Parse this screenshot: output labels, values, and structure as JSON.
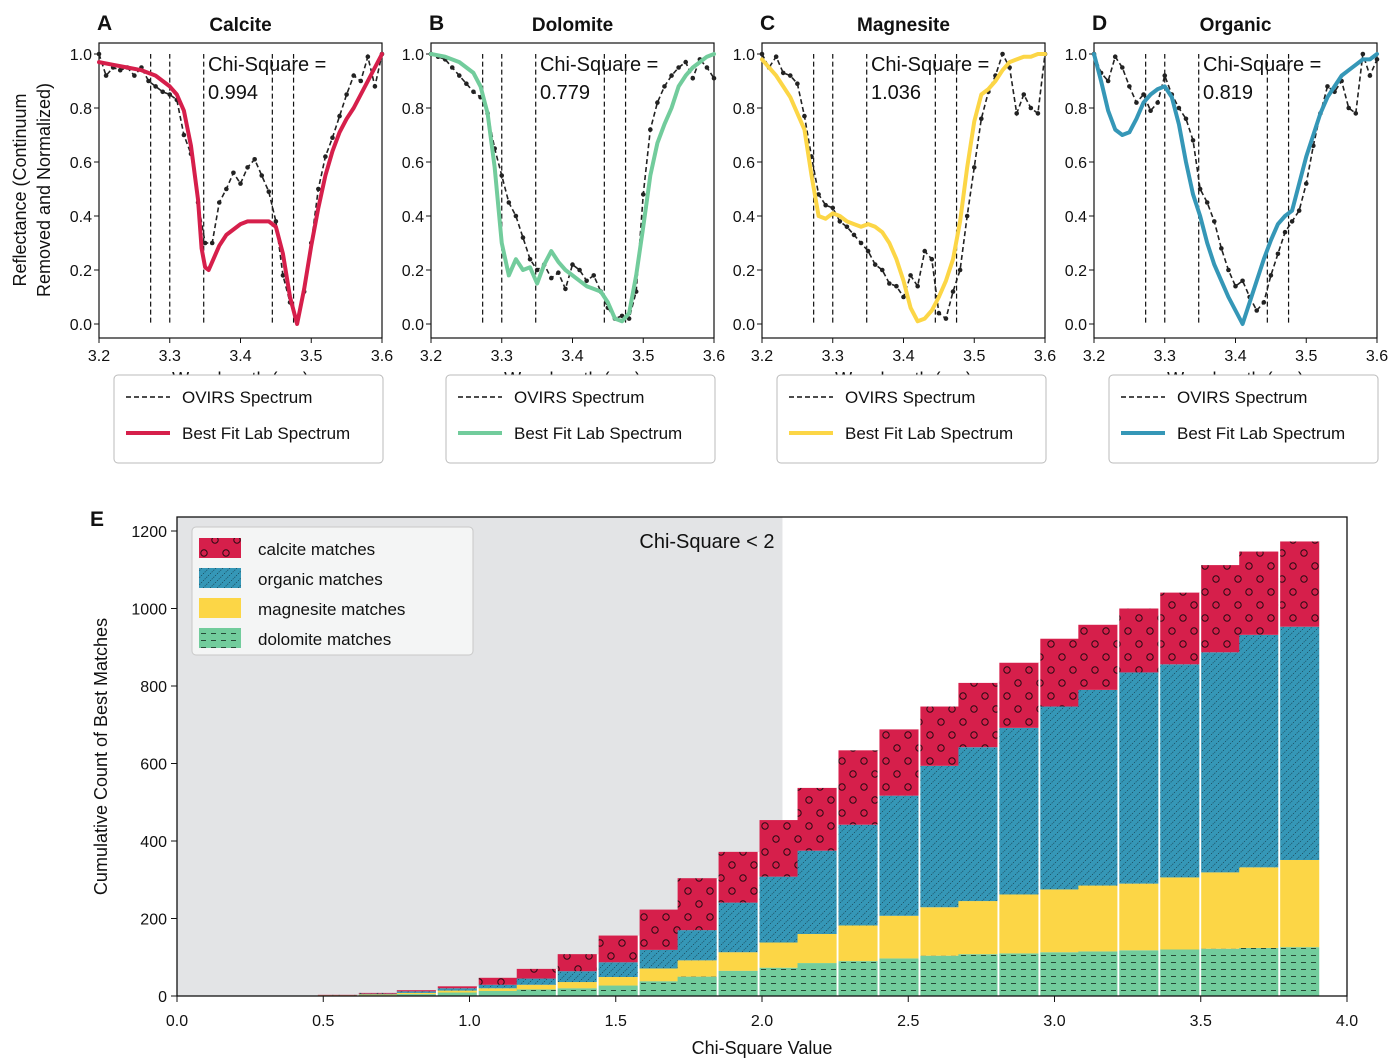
{
  "figure": {
    "top_ylabel": [
      "Reflectance (Continuum",
      "Removed and Normalized)"
    ]
  },
  "chart_data": [
    {
      "type": "line",
      "letter": "A",
      "title": "Calcite",
      "xlabel": "Wavelength (µm)",
      "xlim": [
        3.2,
        3.6
      ],
      "ylim": [
        0.0,
        1.0
      ],
      "xticks": [
        "3.2",
        "3.3",
        "3.4",
        "3.5",
        "3.6"
      ],
      "yticks": [
        "0.0",
        "0.2",
        "0.4",
        "0.6",
        "0.8",
        "1.0"
      ],
      "annotation": [
        "Chi-Square =",
        "0.994"
      ],
      "vlines": [
        3.273,
        3.3,
        3.348,
        3.445,
        3.475
      ],
      "fit_color": "#d61f4b",
      "legend": [
        "OVIRS Spectrum",
        "Best Fit Lab Spectrum"
      ],
      "series": [
        {
          "name": "OVIRS Spectrum",
          "style": "dashed-markers",
          "x": [
            3.2,
            3.21,
            3.22,
            3.23,
            3.24,
            3.25,
            3.26,
            3.27,
            3.28,
            3.29,
            3.3,
            3.31,
            3.32,
            3.33,
            3.34,
            3.35,
            3.36,
            3.37,
            3.38,
            3.39,
            3.4,
            3.41,
            3.42,
            3.43,
            3.44,
            3.45,
            3.46,
            3.47,
            3.48,
            3.49,
            3.5,
            3.51,
            3.52,
            3.53,
            3.54,
            3.55,
            3.56,
            3.57,
            3.58,
            3.59,
            3.6
          ],
          "y": [
            1.0,
            0.92,
            0.95,
            0.94,
            0.95,
            0.92,
            0.95,
            0.9,
            0.88,
            0.86,
            0.85,
            0.83,
            0.7,
            0.63,
            0.45,
            0.3,
            0.3,
            0.45,
            0.5,
            0.56,
            0.52,
            0.58,
            0.61,
            0.55,
            0.49,
            0.38,
            0.18,
            0.08,
            0.01,
            0.12,
            0.3,
            0.5,
            0.62,
            0.69,
            0.77,
            0.85,
            0.92,
            0.9,
            0.99,
            0.88,
            1.0
          ]
        },
        {
          "name": "Best Fit Lab Spectrum",
          "style": "solid",
          "x": [
            3.2,
            3.22,
            3.24,
            3.26,
            3.28,
            3.3,
            3.31,
            3.32,
            3.33,
            3.34,
            3.345,
            3.35,
            3.355,
            3.36,
            3.37,
            3.38,
            3.39,
            3.4,
            3.41,
            3.42,
            3.43,
            3.44,
            3.45,
            3.46,
            3.47,
            3.48,
            3.49,
            3.5,
            3.51,
            3.52,
            3.53,
            3.54,
            3.55,
            3.56,
            3.57,
            3.58,
            3.59,
            3.6
          ],
          "y": [
            0.97,
            0.96,
            0.95,
            0.94,
            0.92,
            0.88,
            0.85,
            0.79,
            0.66,
            0.46,
            0.28,
            0.21,
            0.2,
            0.23,
            0.29,
            0.33,
            0.35,
            0.37,
            0.38,
            0.38,
            0.38,
            0.38,
            0.36,
            0.26,
            0.1,
            0.0,
            0.13,
            0.29,
            0.43,
            0.55,
            0.64,
            0.71,
            0.76,
            0.8,
            0.85,
            0.9,
            0.95,
            1.0
          ]
        }
      ]
    },
    {
      "type": "line",
      "letter": "B",
      "title": "Dolomite",
      "xlabel": "Wavelength (µm)",
      "xlim": [
        3.2,
        3.6
      ],
      "ylim": [
        0.0,
        1.0
      ],
      "xticks": [
        "3.2",
        "3.3",
        "3.4",
        "3.5",
        "3.6"
      ],
      "yticks": [
        "0.0",
        "0.2",
        "0.4",
        "0.6",
        "0.8",
        "1.0"
      ],
      "annotation": [
        "Chi-Square =",
        "0.779"
      ],
      "vlines": [
        3.273,
        3.3,
        3.348,
        3.445,
        3.475
      ],
      "fit_color": "#72cc9c",
      "legend": [
        "OVIRS Spectrum",
        "Best Fit Lab Spectrum"
      ],
      "series": [
        {
          "name": "OVIRS Spectrum",
          "style": "dashed-markers",
          "x": [
            3.2,
            3.21,
            3.22,
            3.23,
            3.24,
            3.25,
            3.26,
            3.27,
            3.28,
            3.29,
            3.3,
            3.31,
            3.32,
            3.33,
            3.34,
            3.35,
            3.36,
            3.37,
            3.38,
            3.39,
            3.4,
            3.41,
            3.42,
            3.43,
            3.44,
            3.45,
            3.46,
            3.47,
            3.48,
            3.49,
            3.5,
            3.51,
            3.52,
            3.53,
            3.54,
            3.55,
            3.56,
            3.57,
            3.58,
            3.59,
            3.6
          ],
          "y": [
            1.0,
            0.99,
            0.98,
            0.95,
            0.92,
            0.89,
            0.86,
            0.84,
            0.78,
            0.65,
            0.55,
            0.45,
            0.4,
            0.32,
            0.24,
            0.2,
            0.22,
            0.17,
            0.19,
            0.13,
            0.22,
            0.2,
            0.16,
            0.18,
            0.12,
            0.06,
            0.02,
            0.03,
            0.02,
            0.12,
            0.48,
            0.72,
            0.82,
            0.88,
            0.92,
            0.95,
            0.97,
            0.91,
            0.98,
            0.95,
            0.91
          ]
        },
        {
          "name": "Best Fit Lab Spectrum",
          "style": "solid",
          "x": [
            3.2,
            3.22,
            3.24,
            3.26,
            3.27,
            3.28,
            3.29,
            3.3,
            3.31,
            3.32,
            3.33,
            3.34,
            3.35,
            3.36,
            3.37,
            3.38,
            3.39,
            3.4,
            3.41,
            3.42,
            3.43,
            3.44,
            3.45,
            3.46,
            3.47,
            3.48,
            3.49,
            3.5,
            3.51,
            3.52,
            3.53,
            3.54,
            3.55,
            3.56,
            3.57,
            3.58,
            3.59,
            3.6
          ],
          "y": [
            1.0,
            0.99,
            0.97,
            0.93,
            0.88,
            0.78,
            0.58,
            0.3,
            0.18,
            0.24,
            0.2,
            0.21,
            0.15,
            0.22,
            0.27,
            0.23,
            0.2,
            0.18,
            0.16,
            0.14,
            0.13,
            0.12,
            0.08,
            0.02,
            0.01,
            0.04,
            0.18,
            0.36,
            0.55,
            0.67,
            0.74,
            0.8,
            0.88,
            0.92,
            0.95,
            0.97,
            0.99,
            1.0
          ]
        }
      ]
    },
    {
      "type": "line",
      "letter": "C",
      "title": "Magnesite",
      "xlabel": "Wavelength (µm)",
      "xlim": [
        3.2,
        3.6
      ],
      "ylim": [
        0.0,
        1.0
      ],
      "xticks": [
        "3.2",
        "3.3",
        "3.4",
        "3.5",
        "3.6"
      ],
      "yticks": [
        "0.0",
        "0.2",
        "0.4",
        "0.6",
        "0.8",
        "1.0"
      ],
      "annotation": [
        "Chi-Square =",
        "1.036"
      ],
      "vlines": [
        3.273,
        3.3,
        3.348,
        3.445,
        3.475
      ],
      "fit_color": "#fcd646",
      "legend": [
        "OVIRS Spectrum",
        "Best Fit Lab Spectrum"
      ],
      "series": [
        {
          "name": "OVIRS Spectrum",
          "style": "dashed-markers",
          "x": [
            3.2,
            3.21,
            3.22,
            3.23,
            3.24,
            3.25,
            3.26,
            3.27,
            3.28,
            3.29,
            3.3,
            3.31,
            3.32,
            3.33,
            3.34,
            3.35,
            3.36,
            3.37,
            3.38,
            3.39,
            3.4,
            3.41,
            3.42,
            3.43,
            3.44,
            3.45,
            3.46,
            3.47,
            3.48,
            3.49,
            3.5,
            3.51,
            3.52,
            3.53,
            3.54,
            3.55,
            3.56,
            3.57,
            3.58,
            3.59,
            3.6
          ],
          "y": [
            1.0,
            0.95,
            0.99,
            0.93,
            0.92,
            0.89,
            0.77,
            0.62,
            0.48,
            0.44,
            0.43,
            0.38,
            0.36,
            0.33,
            0.3,
            0.27,
            0.22,
            0.2,
            0.15,
            0.14,
            0.1,
            0.18,
            0.14,
            0.27,
            0.24,
            0.04,
            0.02,
            0.12,
            0.2,
            0.4,
            0.58,
            0.76,
            0.86,
            0.92,
            1.0,
            0.95,
            0.78,
            0.85,
            0.8,
            0.78,
            1.0
          ]
        },
        {
          "name": "Best Fit Lab Spectrum",
          "style": "solid",
          "x": [
            3.2,
            3.22,
            3.24,
            3.26,
            3.27,
            3.28,
            3.29,
            3.3,
            3.31,
            3.32,
            3.33,
            3.34,
            3.35,
            3.36,
            3.37,
            3.38,
            3.39,
            3.4,
            3.41,
            3.42,
            3.43,
            3.44,
            3.45,
            3.46,
            3.47,
            3.48,
            3.49,
            3.5,
            3.51,
            3.52,
            3.53,
            3.54,
            3.55,
            3.56,
            3.57,
            3.58,
            3.59,
            3.6
          ],
          "y": [
            0.98,
            0.92,
            0.84,
            0.72,
            0.55,
            0.4,
            0.39,
            0.41,
            0.4,
            0.38,
            0.37,
            0.36,
            0.37,
            0.36,
            0.34,
            0.3,
            0.24,
            0.16,
            0.06,
            0.01,
            0.02,
            0.05,
            0.1,
            0.16,
            0.24,
            0.38,
            0.58,
            0.75,
            0.85,
            0.87,
            0.9,
            0.94,
            0.97,
            0.98,
            0.99,
            0.99,
            1.0,
            1.0
          ]
        }
      ]
    },
    {
      "type": "line",
      "letter": "D",
      "title": "Organic",
      "xlabel": "Wavelength (µm)",
      "xlim": [
        3.2,
        3.6
      ],
      "ylim": [
        0.0,
        1.0
      ],
      "xticks": [
        "3.2",
        "3.3",
        "3.4",
        "3.5",
        "3.6"
      ],
      "yticks": [
        "0.0",
        "0.2",
        "0.4",
        "0.6",
        "0.8",
        "1.0"
      ],
      "annotation": [
        "Chi-Square =",
        "0.819"
      ],
      "vlines": [
        3.273,
        3.3,
        3.348,
        3.445,
        3.475
      ],
      "fit_color": "#3597b7",
      "legend": [
        "OVIRS Spectrum",
        "Best Fit Lab Spectrum"
      ],
      "series": [
        {
          "name": "OVIRS Spectrum",
          "style": "dashed-markers",
          "x": [
            3.2,
            3.21,
            3.22,
            3.23,
            3.24,
            3.25,
            3.26,
            3.27,
            3.28,
            3.29,
            3.3,
            3.31,
            3.32,
            3.33,
            3.34,
            3.35,
            3.36,
            3.37,
            3.38,
            3.39,
            3.4,
            3.41,
            3.42,
            3.43,
            3.44,
            3.45,
            3.46,
            3.47,
            3.48,
            3.49,
            3.5,
            3.51,
            3.52,
            3.53,
            3.54,
            3.55,
            3.56,
            3.57,
            3.58,
            3.59,
            3.6
          ],
          "y": [
            1.0,
            0.93,
            0.9,
            0.99,
            0.95,
            0.88,
            0.82,
            0.85,
            0.79,
            0.82,
            0.92,
            0.85,
            0.8,
            0.76,
            0.68,
            0.5,
            0.45,
            0.38,
            0.28,
            0.2,
            0.14,
            0.16,
            0.1,
            0.05,
            0.08,
            0.18,
            0.26,
            0.34,
            0.38,
            0.42,
            0.52,
            0.66,
            0.78,
            0.88,
            0.86,
            0.9,
            0.8,
            0.78,
            1.0,
            0.92,
            0.98
          ]
        },
        {
          "name": "Best Fit Lab Spectrum",
          "style": "solid",
          "x": [
            3.2,
            3.21,
            3.22,
            3.23,
            3.24,
            3.25,
            3.26,
            3.27,
            3.28,
            3.29,
            3.3,
            3.31,
            3.32,
            3.33,
            3.34,
            3.35,
            3.36,
            3.37,
            3.38,
            3.39,
            3.4,
            3.41,
            3.42,
            3.43,
            3.44,
            3.45,
            3.46,
            3.47,
            3.48,
            3.49,
            3.5,
            3.51,
            3.52,
            3.53,
            3.54,
            3.55,
            3.56,
            3.57,
            3.58,
            3.59,
            3.6
          ],
          "y": [
            1.0,
            0.9,
            0.79,
            0.72,
            0.7,
            0.71,
            0.76,
            0.82,
            0.85,
            0.87,
            0.88,
            0.84,
            0.74,
            0.6,
            0.48,
            0.4,
            0.3,
            0.22,
            0.16,
            0.1,
            0.05,
            0.0,
            0.08,
            0.16,
            0.24,
            0.31,
            0.37,
            0.4,
            0.42,
            0.52,
            0.62,
            0.7,
            0.78,
            0.84,
            0.88,
            0.92,
            0.94,
            0.96,
            0.98,
            0.98,
            1.0
          ]
        }
      ]
    },
    {
      "type": "bar",
      "stacked": true,
      "letter": "E",
      "xlabel": "Chi-Square Value",
      "ylabel": "Cumulative Count of Best Matches",
      "xlim": [
        0.0,
        4.0
      ],
      "ylim": [
        0,
        1200
      ],
      "xticks": [
        "0.0",
        "0.5",
        "1.0",
        "1.5",
        "2.0",
        "2.5",
        "3.0",
        "3.5",
        "4.0"
      ],
      "yticks": [
        "0",
        "200",
        "400",
        "600",
        "800",
        "1000",
        "1200"
      ],
      "shaded_region": {
        "x": [
          0.0,
          2.07
        ],
        "label": "Chi-Square < 2"
      },
      "legend_placement": "top-left",
      "categories": [
        0.55,
        0.69,
        0.82,
        0.96,
        1.1,
        1.23,
        1.37,
        1.51,
        1.65,
        1.78,
        1.92,
        2.06,
        2.19,
        2.33,
        2.47,
        2.61,
        2.74,
        2.88,
        3.02,
        3.15,
        3.29,
        3.43,
        3.57,
        3.7,
        3.84
      ],
      "series": [
        {
          "name": "dolomite matches",
          "color": "#72cc9c",
          "pattern": "dashes",
          "values": [
            1,
            2,
            5,
            9,
            13,
            17,
            20,
            27,
            38,
            50,
            65,
            73,
            85,
            90,
            97,
            104,
            108,
            110,
            113,
            115,
            118,
            120,
            122,
            124,
            126
          ]
        },
        {
          "name": "magnesite matches",
          "color": "#fcd646",
          "pattern": "none",
          "values": [
            1,
            2,
            3,
            5,
            7,
            12,
            16,
            22,
            33,
            42,
            48,
            65,
            75,
            92,
            110,
            125,
            137,
            152,
            162,
            170,
            172,
            186,
            197,
            208,
            225
          ]
        },
        {
          "name": "organic matches",
          "color": "#3597b7",
          "pattern": "diagonal",
          "values": [
            0,
            2,
            4,
            6,
            9,
            16,
            28,
            38,
            48,
            78,
            128,
            170,
            215,
            260,
            310,
            365,
            397,
            430,
            472,
            505,
            545,
            550,
            568,
            600,
            602
          ]
        },
        {
          "name": "calcite matches",
          "color": "#d61f4b",
          "pattern": "circles",
          "values": [
            1,
            2,
            3,
            5,
            18,
            25,
            44,
            69,
            104,
            134,
            131,
            146,
            162,
            192,
            171,
            153,
            166,
            168,
            175,
            168,
            165,
            185,
            225,
            215,
            220
          ]
        }
      ]
    }
  ]
}
